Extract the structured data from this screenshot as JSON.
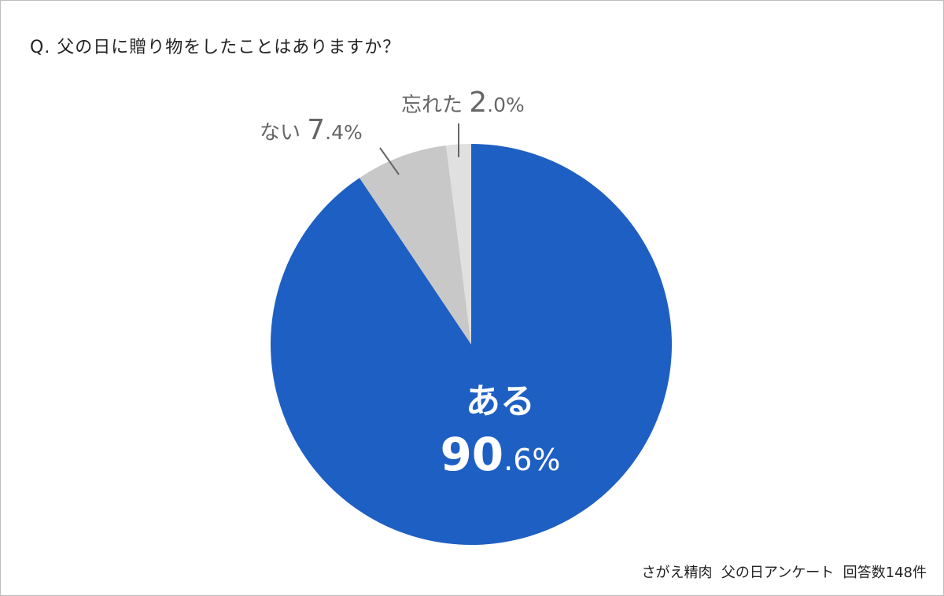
{
  "chart_data": {
    "type": "pie",
    "title": "Q. 父の日に贈り物をしたことはありますか？",
    "start": "top",
    "direction": "clockwise",
    "slices": [
      {
        "label": "ある",
        "value": 90.6,
        "color": "#1e5fc3",
        "label_color": "#ffffff",
        "label_position": "inside"
      },
      {
        "label": "ない",
        "value": 7.4,
        "color": "#c8c8c8",
        "label_color": "#666666",
        "label_position": "outside-leader"
      },
      {
        "label": "忘れた",
        "value": 2.0,
        "color": "#e0e0e0",
        "label_color": "#666666",
        "label_position": "outside-leader"
      }
    ],
    "note": "さがえ精肉  父の日アンケート  回答数148件"
  }
}
